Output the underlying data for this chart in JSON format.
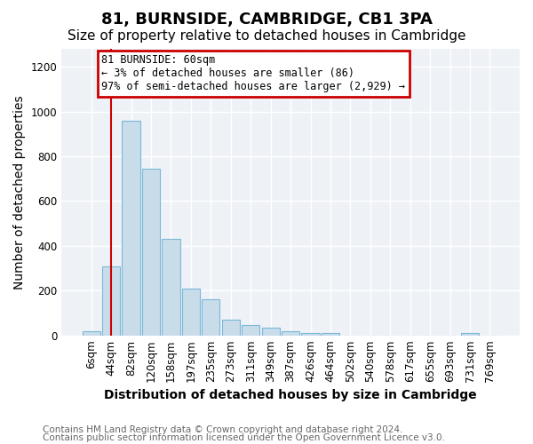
{
  "title": "81, BURNSIDE, CAMBRIDGE, CB1 3PA",
  "subtitle": "Size of property relative to detached houses in Cambridge",
  "xlabel": "Distribution of detached houses by size in Cambridge",
  "ylabel": "Number of detached properties",
  "categories": [
    "6sqm",
    "44sqm",
    "82sqm",
    "120sqm",
    "158sqm",
    "197sqm",
    "235sqm",
    "273sqm",
    "311sqm",
    "349sqm",
    "387sqm",
    "426sqm",
    "464sqm",
    "502sqm",
    "540sqm",
    "578sqm",
    "617sqm",
    "655sqm",
    "693sqm",
    "731sqm",
    "769sqm"
  ],
  "values": [
    20,
    308,
    960,
    745,
    430,
    210,
    163,
    70,
    47,
    35,
    20,
    10,
    10,
    0,
    0,
    0,
    0,
    0,
    0,
    10,
    0
  ],
  "bar_color": "#c9dcea",
  "bar_edge_color": "#7ab8d8",
  "annotation_text": "81 BURNSIDE: 60sqm\n← 3% of detached houses are smaller (86)\n97% of semi-detached houses are larger (2,929) →",
  "annotation_box_color": "#ffffff",
  "annotation_border_color": "#cc0000",
  "redline_x": 1,
  "ylim": [
    0,
    1280
  ],
  "yticks": [
    0,
    200,
    400,
    600,
    800,
    1000,
    1200
  ],
  "footer_line1": "Contains HM Land Registry data © Crown copyright and database right 2024.",
  "footer_line2": "Contains public sector information licensed under the Open Government Licence v3.0.",
  "bg_color": "#ffffff",
  "plot_bg_color": "#eef2f7",
  "grid_color": "#ffffff",
  "title_fontsize": 13,
  "subtitle_fontsize": 11,
  "axis_label_fontsize": 10,
  "tick_fontsize": 8.5,
  "footer_fontsize": 7.5
}
